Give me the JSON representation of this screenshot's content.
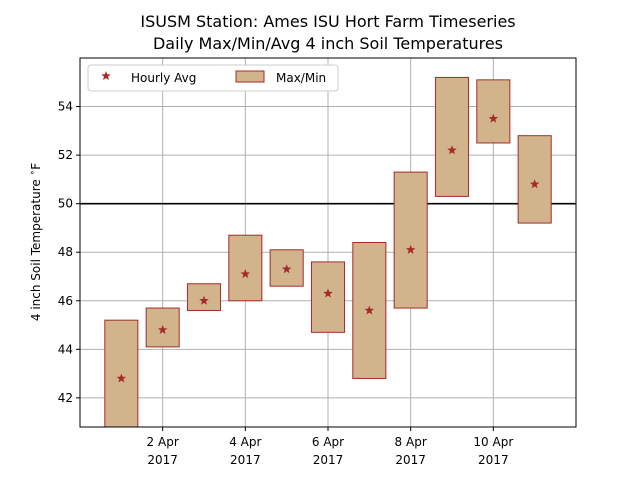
{
  "chart_data": {
    "type": "bar",
    "title_line1": "ISUSM Station: Ames ISU Hort Farm Timeseries",
    "title_line2": "Daily Max/Min/Avg 4 inch Soil Temperatures",
    "ylabel": "4 inch Soil Temperature $^\\circ$F",
    "ylim": [
      40.8,
      56.0
    ],
    "xlim": [
      "2017-03-31T00:00",
      "2017-04-12T00:00"
    ],
    "y_ticks": [
      42,
      44,
      46,
      48,
      50,
      52,
      54
    ],
    "x_ticks": [
      {
        "date": "2017-04-02",
        "label1": "2 Apr",
        "label2": "2017"
      },
      {
        "date": "2017-04-04",
        "label1": "4 Apr",
        "label2": "2017"
      },
      {
        "date": "2017-04-06",
        "label1": "6 Apr",
        "label2": "2017"
      },
      {
        "date": "2017-04-08",
        "label1": "8 Apr",
        "label2": "2017"
      },
      {
        "date": "2017-04-10",
        "label1": "10 Apr",
        "label2": "2017"
      }
    ],
    "reference_line": 50,
    "grid": true,
    "legend": {
      "placement": "top-left",
      "entries": [
        "Hourly Avg",
        "Max/Min"
      ]
    },
    "colors": {
      "bar_fill": "#d2b48c",
      "bar_edge": "#a52a2a",
      "avg_marker": "#a52a2a",
      "reference_line": "#000000",
      "grid": "#b0b0b0"
    },
    "series": [
      {
        "date": "2017-04-01",
        "min": 40.8,
        "max": 45.2,
        "avg": 42.8
      },
      {
        "date": "2017-04-02",
        "min": 44.1,
        "max": 45.7,
        "avg": 44.8
      },
      {
        "date": "2017-04-03",
        "min": 45.6,
        "max": 46.7,
        "avg": 46.0
      },
      {
        "date": "2017-04-04",
        "min": 46.0,
        "max": 48.7,
        "avg": 47.1
      },
      {
        "date": "2017-04-05",
        "min": 46.6,
        "max": 48.1,
        "avg": 47.3
      },
      {
        "date": "2017-04-06",
        "min": 44.7,
        "max": 47.6,
        "avg": 46.3
      },
      {
        "date": "2017-04-07",
        "min": 42.8,
        "max": 48.4,
        "avg": 45.6
      },
      {
        "date": "2017-04-08",
        "min": 45.7,
        "max": 51.3,
        "avg": 48.1
      },
      {
        "date": "2017-04-09",
        "min": 50.3,
        "max": 55.2,
        "avg": 52.2
      },
      {
        "date": "2017-04-10",
        "min": 52.5,
        "max": 55.1,
        "avg": 53.5
      },
      {
        "date": "2017-04-11",
        "min": 49.2,
        "max": 52.8,
        "avg": 50.8
      }
    ]
  }
}
